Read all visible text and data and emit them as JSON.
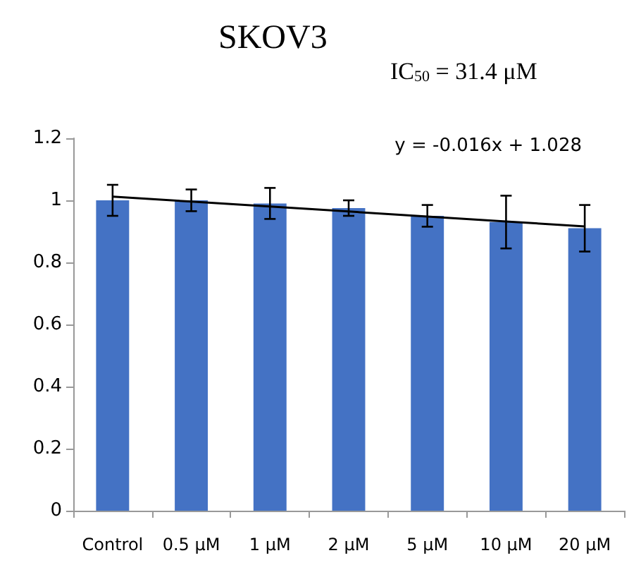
{
  "chart_data": {
    "type": "bar",
    "title": "SKOV3",
    "subtitle": "IC$_{50}$ = 31.4 μM",
    "categories": [
      "Control",
      "0.5 μM",
      "1 μM",
      "2 μM",
      "5 μM",
      "10 μM",
      "20 μM"
    ],
    "series": [
      {
        "color": "#4472c4",
        "values": [
          1.0,
          1.0,
          0.99,
          0.975,
          0.95,
          0.93,
          0.91
        ],
        "errors": [
          0.05,
          0.035,
          0.05,
          0.025,
          0.035,
          0.085,
          0.075
        ]
      },
      {
        "type": "line",
        "color": "#000000",
        "values": [
          1.012,
          0.996,
          0.98,
          0.964,
          0.948,
          0.932,
          0.916
        ]
      }
    ],
    "annotations": [
      "y = -0.016x + 1.028"
    ],
    "ylim": [
      0,
      1.2
    ],
    "yticks": [
      0,
      0.2,
      0.4,
      0.6,
      0.8,
      1,
      1.2
    ],
    "grid": false,
    "marker": "none",
    "line_style": "solid"
  }
}
